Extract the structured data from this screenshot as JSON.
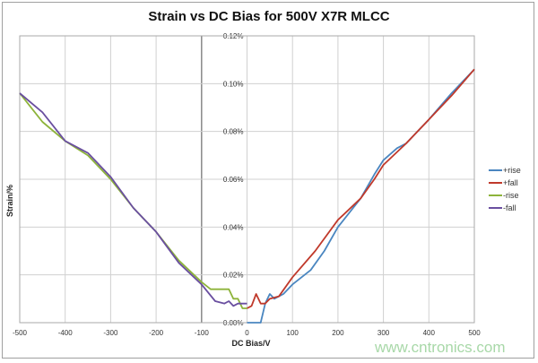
{
  "chart_data": {
    "type": "line",
    "title": "Strain vs DC Bias for 500V X7R MLCC",
    "xlabel": "DC Bias/V",
    "ylabel": "Strain/%",
    "xlim": [
      -500,
      500
    ],
    "ylim": [
      0,
      0.12
    ],
    "xticks": [
      -500,
      -400,
      -300,
      -200,
      -100,
      0,
      100,
      200,
      300,
      400,
      500
    ],
    "yticks": [
      "0.00%",
      "0.02%",
      "0.04%",
      "0.06%",
      "0.08%",
      "0.10%",
      "0.12%"
    ],
    "grid": true,
    "legend": "right",
    "series": [
      {
        "name": "+rise",
        "color": "#4a86c0",
        "x": [
          0,
          30,
          40,
          50,
          55,
          60,
          80,
          100,
          140,
          170,
          200,
          250,
          280,
          300,
          330,
          350,
          400,
          450,
          500
        ],
        "y": [
          0,
          0,
          0.008,
          0.012,
          0.011,
          0.01,
          0.012,
          0.016,
          0.022,
          0.03,
          0.04,
          0.052,
          0.062,
          0.068,
          0.073,
          0.075,
          0.085,
          0.096,
          0.106
        ]
      },
      {
        "name": "+fall",
        "color": "#c0392b",
        "x": [
          0,
          10,
          20,
          30,
          40,
          50,
          70,
          100,
          150,
          200,
          250,
          280,
          300,
          350,
          400,
          450,
          500
        ],
        "y": [
          0.006,
          0.007,
          0.012,
          0.008,
          0.008,
          0.01,
          0.011,
          0.019,
          0.03,
          0.043,
          0.052,
          0.06,
          0.066,
          0.075,
          0.085,
          0.095,
          0.106
        ]
      },
      {
        "name": "-rise",
        "color": "#8db33a",
        "x": [
          -500,
          -450,
          -400,
          -350,
          -300,
          -250,
          -200,
          -150,
          -100,
          -80,
          -60,
          -40,
          -30,
          -20,
          -10,
          0
        ],
        "y": [
          0.096,
          0.084,
          0.076,
          0.07,
          0.06,
          0.048,
          0.038,
          0.026,
          0.017,
          0.014,
          0.014,
          0.014,
          0.01,
          0.01,
          0.006,
          0.006
        ]
      },
      {
        "name": "-fall",
        "color": "#6a4fa0",
        "x": [
          -500,
          -450,
          -400,
          -350,
          -300,
          -250,
          -200,
          -150,
          -100,
          -70,
          -50,
          -40,
          -30,
          -20,
          0
        ],
        "y": [
          0.096,
          0.088,
          0.076,
          0.071,
          0.061,
          0.048,
          0.038,
          0.025,
          0.016,
          0.009,
          0.008,
          0.009,
          0.007,
          0.008,
          0.008
        ]
      }
    ]
  },
  "watermark": "www.cntronics.com"
}
